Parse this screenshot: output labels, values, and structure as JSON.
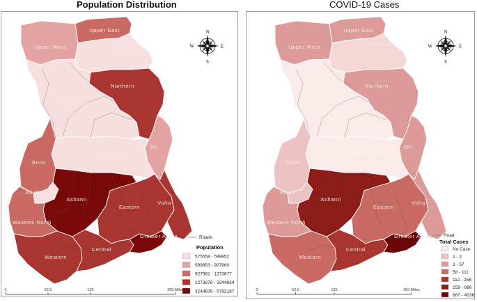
{
  "colors": {
    "c1": "#f7dfe0",
    "c2": "#e3a3a3",
    "c3": "#c96b64",
    "c4": "#a8352f",
    "c5": "#7a0a0a",
    "road": "#555555",
    "border": "#ffffff"
  },
  "left_map": {
    "title": "Population Distribution",
    "roads_label": "Roads",
    "legend": {
      "title": "Population",
      "items": [
        {
          "label": "575558 - 599852",
          "class": "c1"
        },
        {
          "label": "599853 - 927960",
          "class": "c2"
        },
        {
          "label": "927961 - 1273677",
          "class": "c3"
        },
        {
          "label": "1273678 - 3244834",
          "class": "c4"
        },
        {
          "label": "3244835 - 5792187",
          "class": "c5"
        }
      ]
    },
    "scale": {
      "ticks": [
        "0",
        "62.5",
        "125",
        "250 Miles"
      ]
    },
    "regions": {
      "upper_west": {
        "name": "Upper West",
        "class": "c2"
      },
      "upper_east": {
        "name": "Upper East",
        "class": "c3"
      },
      "north_east": {
        "name": "North East",
        "class": "c1"
      },
      "northern": {
        "name": "Northern",
        "class": "c4"
      },
      "savannah": {
        "name": "Savannah",
        "class": "c1"
      },
      "oti": {
        "name": "Oti",
        "class": "c2"
      },
      "bono_east": {
        "name": "Bono East",
        "class": "c1"
      },
      "bono": {
        "name": "Bono",
        "class": "c3"
      },
      "ahafo": {
        "name": "Ahafo",
        "class": "c1"
      },
      "ashanti": {
        "name": "Ashanti",
        "class": "c5"
      },
      "eastern": {
        "name": "Eastern",
        "class": "c4"
      },
      "volta": {
        "name": "Volta",
        "class": "c4"
      },
      "western_north": {
        "name": "Western North",
        "class": "c3"
      },
      "western": {
        "name": "Western",
        "class": "c4"
      },
      "central": {
        "name": "Central",
        "class": "c4"
      },
      "greater_accra": {
        "name": "Greater Accra",
        "class": "c5"
      }
    }
  },
  "right_map": {
    "title": "COVID-19 Cases",
    "roads_label": "Road",
    "legend": {
      "title": "Total Cases",
      "items": [
        {
          "label": "No Case",
          "color": "#fbeaea"
        },
        {
          "label": "1 - 2",
          "color": "#edc2c2"
        },
        {
          "label": "3 - 57",
          "color": "#dc9b98"
        },
        {
          "label": "58 - 111",
          "color": "#c96b64"
        },
        {
          "label": "112 - 258",
          "color": "#a8352f"
        },
        {
          "label": "259 - 886",
          "color": "#8b1c18"
        },
        {
          "label": "887 - 4536",
          "color": "#6a0707"
        }
      ]
    },
    "scale": {
      "ticks": [
        "0",
        "62.5",
        "125",
        "250 Miles"
      ]
    },
    "regions": {
      "upper_west": {
        "name": "Upper West",
        "color": "#dc9b98"
      },
      "upper_east": {
        "name": "Upper East",
        "color": "#dc9b98"
      },
      "north_east": {
        "name": "North East",
        "color": "#f5d7d7"
      },
      "northern": {
        "name": "Northern",
        "color": "#dc9b98"
      },
      "savannah": {
        "name": "Savannah",
        "color": "#fbeaea"
      },
      "oti": {
        "name": "Oti",
        "color": "#dc9b98"
      },
      "bono_east": {
        "name": "Bono East",
        "color": "#fbeaea"
      },
      "bono": {
        "name": "Bono",
        "color": "#edc2c2"
      },
      "ahafo": {
        "name": "Ahafo",
        "color": "#edc2c2"
      },
      "ashanti": {
        "name": "Ashanti",
        "color": "#8b1c18"
      },
      "eastern": {
        "name": "Eastern",
        "color": "#c96b64"
      },
      "volta": {
        "name": "Volta",
        "color": "#dc9b98"
      },
      "western_north": {
        "name": "Western North",
        "color": "#dc9b98"
      },
      "western": {
        "name": "Western",
        "color": "#c96b64"
      },
      "central": {
        "name": "Central",
        "color": "#a8352f"
      },
      "greater_accra": {
        "name": "Greater Accra",
        "color": "#6a0707"
      }
    }
  },
  "compass": {
    "n": "N",
    "s": "S",
    "e": "E",
    "w": "W"
  }
}
